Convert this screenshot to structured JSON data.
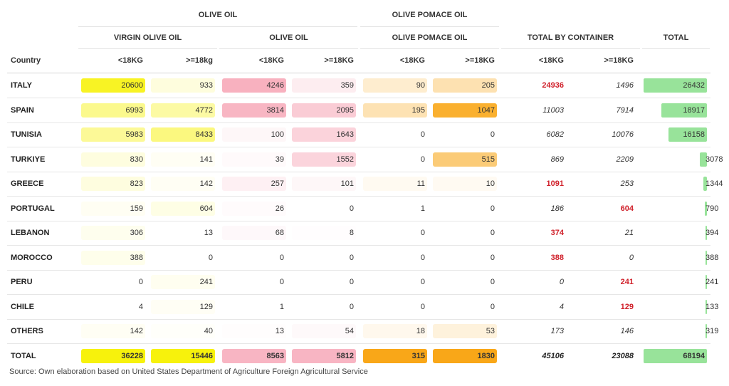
{
  "header": {
    "olive_oil_group": "OLIVE OIL",
    "pomace_group": "OLIVE POMACE OIL",
    "sub_virgin": "VIRGIN OLIVE OIL",
    "sub_olive": "OLIVE OIL",
    "sub_pomace": "OLIVE POMACE OIL",
    "sub_total_container": "TOTAL BY CONTAINER",
    "sub_total": "TOTAL",
    "country_label": "Country",
    "col_labels": [
      "<18KG",
      ">=18kg",
      "<18KG",
      ">=18KG",
      "<18KG",
      ">=18KG",
      "<18KG",
      ">=18KG"
    ]
  },
  "colors": {
    "virgin": "#f7f20c",
    "olive": "#f7a8b8",
    "pomace": "#f9a718",
    "total_bar": "#98e39a",
    "red_text": "#d0202a"
  },
  "chart_data": {
    "type": "table",
    "columns": [
      "Country",
      "Virgin olive oil <18KG",
      "Virgin olive oil >=18kg",
      "Olive oil <18KG",
      "Olive oil >=18KG",
      "Olive pomace oil <18KG",
      "Olive pomace oil >=18KG",
      "Total by container <18KG",
      "Total by container >=18KG",
      "Total"
    ],
    "rows": [
      {
        "country": "ITALY",
        "virgin_lt": "20600",
        "virgin_ge": "933",
        "olive_lt": "4246",
        "olive_ge": "359",
        "pomace_lt": "90",
        "pomace_ge": "205",
        "tot_lt": "24936",
        "tot_ge": "1496",
        "total": "26432"
      },
      {
        "country": "SPAIN",
        "virgin_lt": "6993",
        "virgin_ge": "4772",
        "olive_lt": "3814",
        "olive_ge": "2095",
        "pomace_lt": "195",
        "pomace_ge": "1047",
        "tot_lt": "11003",
        "tot_ge": "7914",
        "total": "18917"
      },
      {
        "country": "TUNISIA",
        "virgin_lt": "5983",
        "virgin_ge": "8433",
        "olive_lt": "100",
        "olive_ge": "1643",
        "pomace_lt": "0",
        "pomace_ge": "0",
        "tot_lt": "6082",
        "tot_ge": "10076",
        "total": "16158"
      },
      {
        "country": "TURKIYE",
        "virgin_lt": "830",
        "virgin_ge": "141",
        "olive_lt": "39",
        "olive_ge": "1552",
        "pomace_lt": "0",
        "pomace_ge": "515",
        "tot_lt": "869",
        "tot_ge": "2209",
        "total": "3078"
      },
      {
        "country": "GREECE",
        "virgin_lt": "823",
        "virgin_ge": "142",
        "olive_lt": "257",
        "olive_ge": "101",
        "pomace_lt": "11",
        "pomace_ge": "10",
        "tot_lt": "1091",
        "tot_ge": "253",
        "total": "1344"
      },
      {
        "country": "PORTUGAL",
        "virgin_lt": "159",
        "virgin_ge": "604",
        "olive_lt": "26",
        "olive_ge": "0",
        "pomace_lt": "1",
        "pomace_ge": "0",
        "tot_lt": "186",
        "tot_ge": "604",
        "total": "790"
      },
      {
        "country": "LEBANON",
        "virgin_lt": "306",
        "virgin_ge": "13",
        "olive_lt": "68",
        "olive_ge": "8",
        "pomace_lt": "0",
        "pomace_ge": "0",
        "tot_lt": "374",
        "tot_ge": "21",
        "total": "394"
      },
      {
        "country": "MOROCCO",
        "virgin_lt": "388",
        "virgin_ge": "0",
        "olive_lt": "0",
        "olive_ge": "0",
        "pomace_lt": "0",
        "pomace_ge": "0",
        "tot_lt": "388",
        "tot_ge": "0",
        "total": "388"
      },
      {
        "country": "PERU",
        "virgin_lt": "0",
        "virgin_ge": "241",
        "olive_lt": "0",
        "olive_ge": "0",
        "pomace_lt": "0",
        "pomace_ge": "0",
        "tot_lt": "0",
        "tot_ge": "241",
        "total": "241"
      },
      {
        "country": "CHILE",
        "virgin_lt": "4",
        "virgin_ge": "129",
        "olive_lt": "1",
        "olive_ge": "0",
        "pomace_lt": "0",
        "pomace_ge": "0",
        "tot_lt": "4",
        "tot_ge": "129",
        "total": "133"
      },
      {
        "country": "OTHERS",
        "virgin_lt": "142",
        "virgin_ge": "40",
        "olive_lt": "13",
        "olive_ge": "54",
        "pomace_lt": "18",
        "pomace_ge": "53",
        "tot_lt": "173",
        "tot_ge": "146",
        "total": "319"
      }
    ],
    "total_row": {
      "country": "TOTAL",
      "virgin_lt": "36228",
      "virgin_ge": "15446",
      "olive_lt": "8563",
      "olive_ge": "5812",
      "pomace_lt": "315",
      "pomace_ge": "1830",
      "tot_lt": "45106",
      "tot_ge": "23088",
      "total": "68194"
    },
    "total_by_container_red": {
      "tot_lt": [
        "ITALY",
        "GREECE",
        "LEBANON",
        "MOROCCO"
      ],
      "tot_ge": [
        "PORTUGAL",
        "PERU",
        "CHILE"
      ]
    }
  },
  "source_text": "Source: Own elaboration based on United States Department of Agriculture Foreign Agricultural Service"
}
